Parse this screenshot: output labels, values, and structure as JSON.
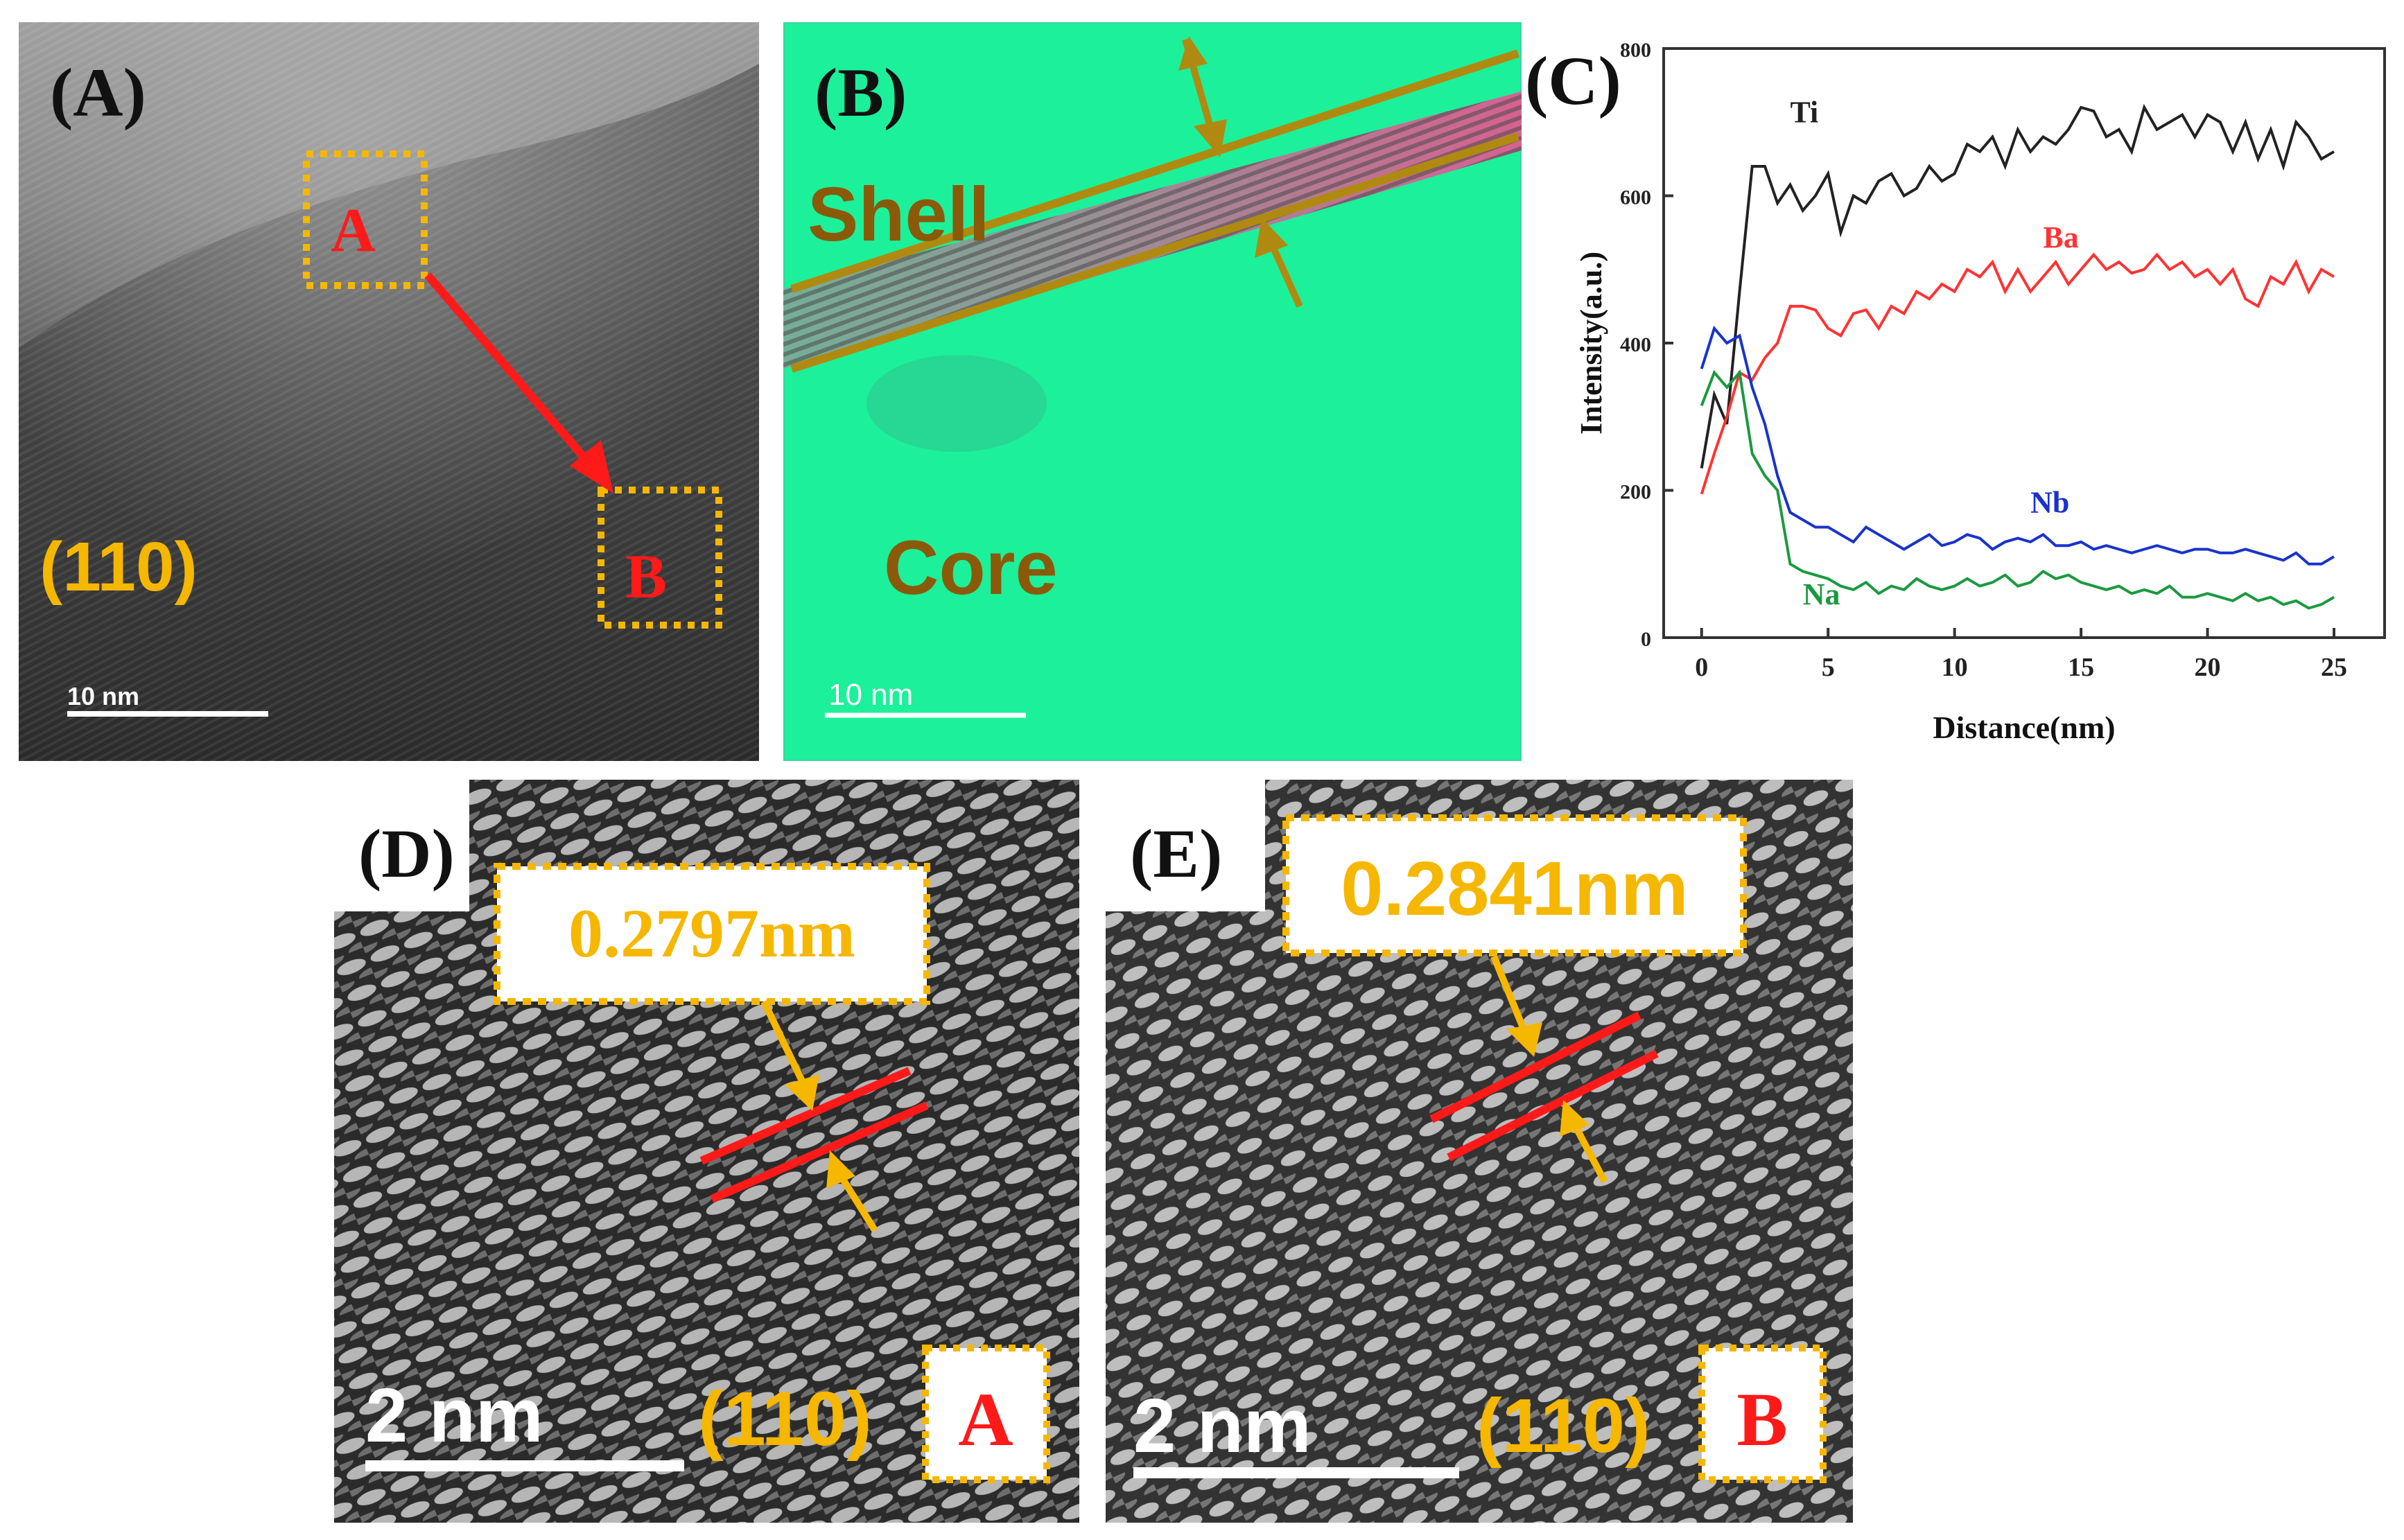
{
  "panels": {
    "A": {
      "letter": "(A)",
      "box_a": "A",
      "box_b": "B",
      "plane": "(110)",
      "scale": "10 nm"
    },
    "B": {
      "letter": "(B)",
      "shell": "Shell",
      "core": "Core",
      "scale": "10 nm"
    },
    "D": {
      "letter": "(D)",
      "spacing": "0.2797nm",
      "scale": "2 nm",
      "plane": "(110)",
      "region": "A"
    },
    "E": {
      "letter": "(E)",
      "spacing": "0.2841nm",
      "scale": "2 nm",
      "plane": "(110)",
      "region": "B"
    }
  },
  "colors": {
    "gold": "#f5b700",
    "red": "#ff1a1a",
    "olive": "#b08a10",
    "green_bg": "#1cf09a"
  },
  "chart_data": {
    "type": "line",
    "letter": "(C)",
    "title": "",
    "xlabel": "Distance(nm)",
    "ylabel": "Intensity(a.u.)",
    "xlim": [
      -1.5,
      27
    ],
    "ylim": [
      0,
      800
    ],
    "xticks": [
      0,
      5,
      10,
      15,
      20,
      25
    ],
    "yticks": [
      0,
      200,
      400,
      600,
      800
    ],
    "x": [
      0,
      0.5,
      1,
      1.5,
      2,
      2.5,
      3,
      3.5,
      4,
      4.5,
      5,
      5.5,
      6,
      6.5,
      7,
      7.5,
      8,
      8.5,
      9,
      9.5,
      10,
      10.5,
      11,
      11.5,
      12,
      12.5,
      13,
      13.5,
      14,
      14.5,
      15,
      15.5,
      16,
      16.5,
      17,
      17.5,
      18,
      18.5,
      19,
      19.5,
      20,
      20.5,
      21,
      21.5,
      22,
      22.5,
      23,
      23.5,
      24,
      24.5,
      25
    ],
    "series": [
      {
        "name": "Ti",
        "color": "#222222",
        "values": [
          230,
          330,
          290,
          470,
          640,
          640,
          590,
          615,
          580,
          600,
          630,
          550,
          600,
          590,
          620,
          630,
          600,
          610,
          640,
          620,
          630,
          670,
          660,
          680,
          640,
          690,
          660,
          680,
          670,
          690,
          720,
          715,
          680,
          690,
          660,
          720,
          690,
          700,
          710,
          680,
          710,
          700,
          660,
          700,
          650,
          690,
          640,
          700,
          680,
          650,
          660
        ]
      },
      {
        "name": "Ba",
        "color": "#ff3333",
        "values": [
          195,
          250,
          300,
          360,
          350,
          380,
          400,
          450,
          450,
          445,
          420,
          410,
          440,
          445,
          420,
          450,
          440,
          470,
          460,
          480,
          470,
          500,
          490,
          510,
          470,
          500,
          470,
          490,
          510,
          480,
          500,
          520,
          500,
          510,
          495,
          500,
          520,
          500,
          510,
          490,
          500,
          480,
          500,
          460,
          450,
          490,
          480,
          510,
          470,
          500,
          490
        ]
      },
      {
        "name": "Nb",
        "color": "#1a33cc",
        "values": [
          365,
          420,
          400,
          410,
          340,
          290,
          220,
          170,
          160,
          150,
          150,
          140,
          130,
          150,
          140,
          130,
          120,
          130,
          140,
          125,
          130,
          140,
          135,
          120,
          130,
          135,
          130,
          140,
          125,
          125,
          130,
          120,
          125,
          120,
          115,
          120,
          125,
          120,
          115,
          120,
          120,
          115,
          115,
          120,
          115,
          110,
          105,
          115,
          100,
          100,
          110
        ]
      },
      {
        "name": "Na",
        "color": "#1a9a40",
        "values": [
          315,
          360,
          340,
          360,
          250,
          220,
          200,
          100,
          90,
          85,
          80,
          70,
          65,
          75,
          60,
          70,
          65,
          80,
          70,
          65,
          70,
          80,
          70,
          75,
          85,
          70,
          75,
          90,
          80,
          85,
          75,
          70,
          65,
          70,
          60,
          65,
          60,
          70,
          55,
          55,
          60,
          55,
          50,
          60,
          50,
          55,
          45,
          50,
          40,
          45,
          55
        ]
      }
    ],
    "labels": [
      {
        "series": "Ti",
        "text": "Ti",
        "x": 3.5,
        "y": 700
      },
      {
        "series": "Ba",
        "text": "Ba",
        "x": 13.5,
        "y": 530
      },
      {
        "series": "Nb",
        "text": "Nb",
        "x": 13.0,
        "y": 170
      },
      {
        "series": "Na",
        "text": "Na",
        "x": 4.0,
        "y": 45
      }
    ]
  }
}
